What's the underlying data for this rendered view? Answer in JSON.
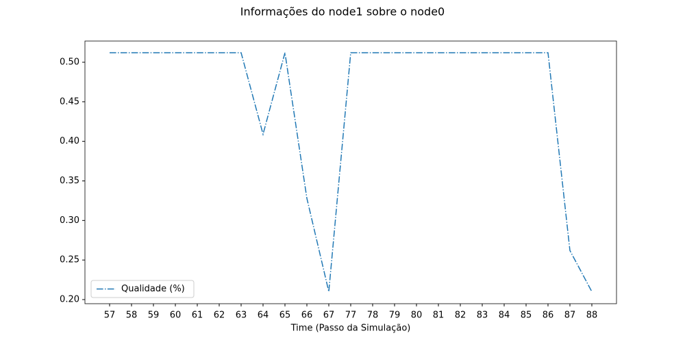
{
  "chart_data": {
    "type": "line",
    "title": "Informações do node1 sobre o node0",
    "x_label": "Time (Passo da Simulação)",
    "categories": [
      "57",
      "58",
      "59",
      "60",
      "61",
      "62",
      "63",
      "64",
      "65",
      "66",
      "67",
      "77",
      "78",
      "79",
      "80",
      "81",
      "82",
      "83",
      "84",
      "85",
      "86",
      "87",
      "88"
    ],
    "series": [
      {
        "name": "Qualidade (%)",
        "color": "#1f77b4",
        "values": [
          0.512,
          0.512,
          0.512,
          0.512,
          0.512,
          0.512,
          0.512,
          0.409,
          0.512,
          0.328,
          0.21,
          0.512,
          0.512,
          0.512,
          0.512,
          0.512,
          0.512,
          0.512,
          0.512,
          0.512,
          0.512,
          0.262,
          0.21
        ]
      }
    ],
    "ylim": [
      0.1948,
      0.5268
    ],
    "yticks": [
      {
        "value": 0.2,
        "label": "0.20"
      },
      0.25,
      {
        "value": 0.3,
        "label": "0.30"
      },
      0.35,
      {
        "value": 0.4,
        "label": "0.40"
      },
      0.45,
      {
        "value": 0.5,
        "label": "0.50"
      }
    ],
    "grid": false,
    "legend": "lower left"
  }
}
